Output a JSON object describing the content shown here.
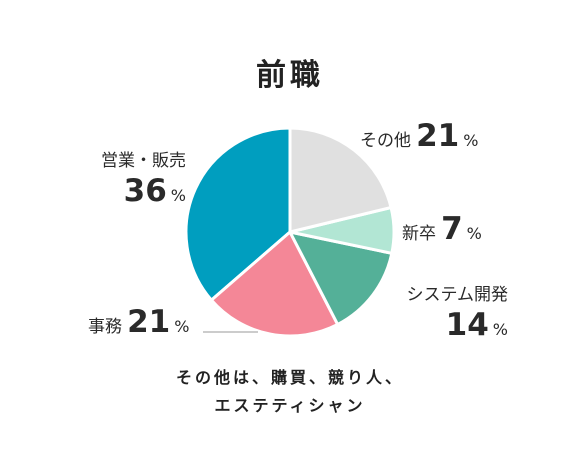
{
  "chart_data": {
    "type": "pie",
    "title": "前職",
    "unit": "%",
    "slices": [
      {
        "label": "その他",
        "value": 21,
        "color": "#e0e0e0"
      },
      {
        "label": "新卒",
        "value": 7,
        "color": "#b2e6d4"
      },
      {
        "label": "システム開発",
        "value": 14,
        "color": "#54b098"
      },
      {
        "label": "事務",
        "value": 21,
        "color": "#f48797"
      },
      {
        "label": "営業・販売",
        "value": 36,
        "color": "#009ebf"
      }
    ]
  },
  "footnote": {
    "line1": "その他は、購買、競り人、",
    "line2": "エステティシャン"
  }
}
